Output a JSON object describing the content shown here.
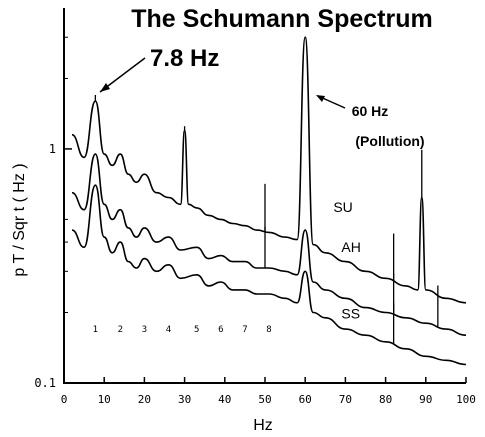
{
  "chart_data": {
    "type": "line",
    "title": "The Schumann Spectrum",
    "xlabel": "Hz",
    "ylabel": "p T / Sqr t ( Hz )",
    "xlim": [
      0,
      100
    ],
    "ylim": [
      0.1,
      4
    ],
    "y_scale": "log",
    "x_ticks": [
      0,
      10,
      20,
      30,
      40,
      50,
      60,
      70,
      80,
      90,
      100
    ],
    "x_tick_labels": [
      "0",
      "10",
      "20",
      "30",
      "40",
      "50",
      "60",
      "70",
      "80",
      "90",
      "100"
    ],
    "y_ticks": [
      0.1,
      1
    ],
    "y_tick_labels": [
      "0.1",
      "1"
    ],
    "grid": false,
    "mode_numbers": [
      "1",
      "2",
      "3",
      "4",
      "5",
      "6",
      "7",
      "8"
    ],
    "mode_frequencies": [
      7.8,
      14,
      20,
      26,
      33,
      39,
      45,
      51
    ],
    "series": [
      {
        "name": "SU",
        "x": [
          2,
          5,
          7.8,
          10,
          12,
          14,
          16,
          18,
          20,
          23,
          26,
          29,
          30,
          31,
          33,
          36,
          39,
          42,
          45,
          48,
          51,
          55,
          58,
          60,
          62,
          65,
          70,
          75,
          80,
          85,
          88,
          89,
          90,
          95,
          100
        ],
        "y": [
          1.15,
          0.92,
          1.6,
          0.95,
          0.85,
          0.95,
          0.78,
          0.72,
          0.78,
          0.65,
          0.62,
          0.58,
          1.2,
          0.58,
          0.56,
          0.52,
          0.5,
          0.48,
          0.47,
          0.45,
          0.44,
          0.42,
          0.41,
          3.0,
          0.39,
          0.36,
          0.33,
          0.3,
          0.28,
          0.26,
          0.25,
          0.62,
          0.25,
          0.23,
          0.22
        ],
        "spikes": [
          7.8,
          30,
          50,
          60,
          82,
          89
        ]
      },
      {
        "name": "AH",
        "x": [
          2,
          5,
          7.8,
          10,
          12,
          14,
          16,
          18,
          20,
          23,
          26,
          29,
          33,
          36,
          39,
          42,
          45,
          48,
          51,
          55,
          58,
          60,
          62,
          65,
          70,
          75,
          80,
          85,
          90,
          95,
          100
        ],
        "y": [
          0.65,
          0.55,
          0.95,
          0.58,
          0.5,
          0.55,
          0.46,
          0.42,
          0.46,
          0.4,
          0.42,
          0.37,
          0.38,
          0.34,
          0.35,
          0.33,
          0.33,
          0.31,
          0.31,
          0.3,
          0.29,
          0.45,
          0.27,
          0.25,
          0.23,
          0.21,
          0.2,
          0.19,
          0.18,
          0.17,
          0.16
        ],
        "spikes": [
          50,
          82,
          93
        ]
      },
      {
        "name": "SS",
        "x": [
          2,
          5,
          7.8,
          10,
          12,
          14,
          16,
          18,
          20,
          23,
          26,
          29,
          33,
          36,
          39,
          42,
          45,
          48,
          51,
          55,
          58,
          60,
          62,
          65,
          70,
          75,
          80,
          85,
          90,
          95,
          100
        ],
        "y": [
          0.45,
          0.38,
          0.7,
          0.42,
          0.36,
          0.4,
          0.33,
          0.31,
          0.34,
          0.3,
          0.32,
          0.28,
          0.29,
          0.26,
          0.27,
          0.25,
          0.25,
          0.24,
          0.24,
          0.23,
          0.22,
          0.3,
          0.2,
          0.19,
          0.17,
          0.16,
          0.15,
          0.14,
          0.13,
          0.125,
          0.12
        ],
        "spikes": [
          82
        ]
      }
    ],
    "annotations": [
      {
        "text": "7.8 Hz",
        "x": 7.8
      },
      {
        "text": "60 Hz",
        "x": 60
      },
      {
        "text": "(Pollution)",
        "x": 60
      }
    ]
  }
}
